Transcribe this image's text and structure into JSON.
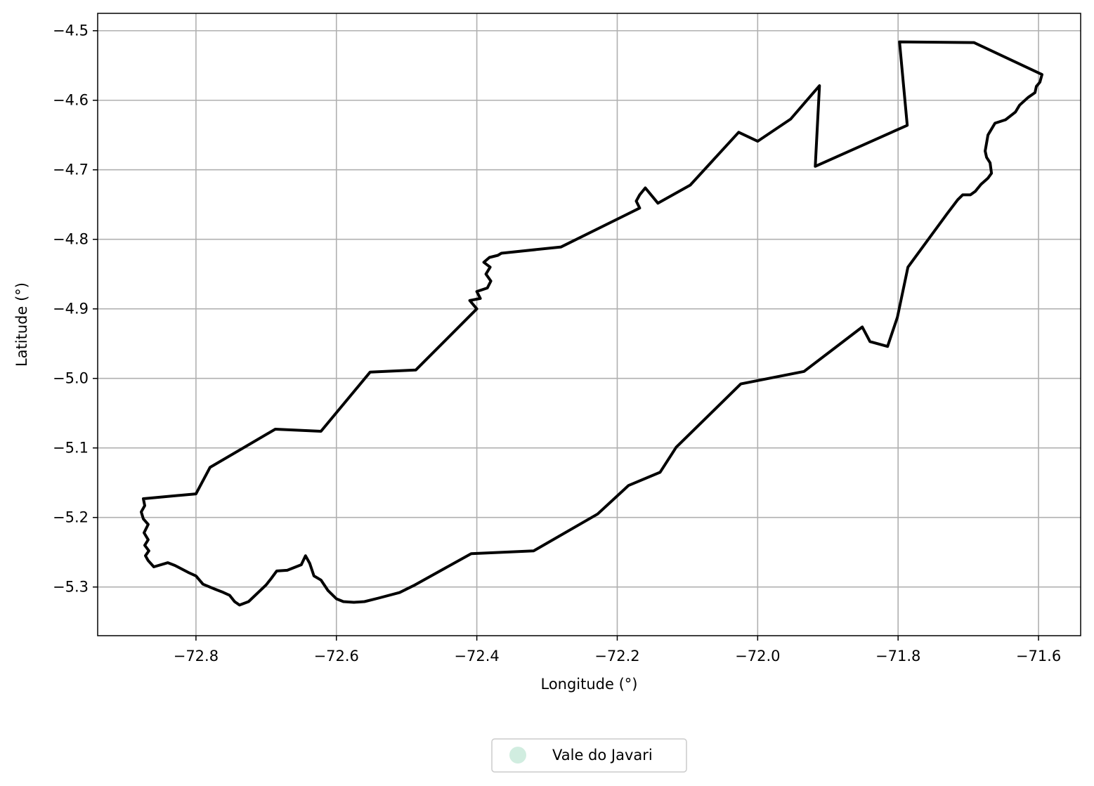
{
  "chart_data": {
    "type": "map",
    "xlabel": "Longitude (°)",
    "ylabel": "Latitude (°)",
    "xlim": [
      -72.94,
      -71.54
    ],
    "ylim": [
      -5.37,
      -4.475
    ],
    "xticks": [
      -72.8,
      -72.6,
      -72.4,
      -72.2,
      -72.0,
      -71.8,
      -71.6
    ],
    "xtick_labels": [
      "−72.8",
      "−72.6",
      "−72.4",
      "−72.2",
      "−72.0",
      "−71.8",
      "−71.6"
    ],
    "yticks": [
      -4.5,
      -4.6,
      -4.7,
      -4.8,
      -4.9,
      -5.0,
      -5.1,
      -5.2,
      -5.3
    ],
    "ytick_labels": [
      "−4.5",
      "−4.6",
      "−4.7",
      "−4.8",
      "−4.9",
      "−5.0",
      "−5.1",
      "−5.2",
      "−5.3"
    ],
    "grid": true,
    "legend": {
      "placement": "bottom-center",
      "entries": [
        {
          "label": "Vale do Javari",
          "color": "#d1ede0"
        }
      ]
    },
    "boundary_color": "#000000",
    "series": [
      {
        "name": "Vale do Javari",
        "boundary": [
          [
            -72.875,
            -5.173
          ],
          [
            -72.8,
            -5.166
          ],
          [
            -72.78,
            -5.128
          ],
          [
            -72.687,
            -5.073
          ],
          [
            -72.622,
            -5.076
          ],
          [
            -72.552,
            -4.991
          ],
          [
            -72.487,
            -4.988
          ],
          [
            -72.4,
            -4.9
          ],
          [
            -72.41,
            -4.888
          ],
          [
            -72.395,
            -4.885
          ],
          [
            -72.4,
            -4.875
          ],
          [
            -72.385,
            -4.87
          ],
          [
            -72.38,
            -4.86
          ],
          [
            -72.387,
            -4.85
          ],
          [
            -72.381,
            -4.84
          ],
          [
            -72.39,
            -4.833
          ],
          [
            -72.382,
            -4.826
          ],
          [
            -72.37,
            -4.823
          ],
          [
            -72.365,
            -4.82
          ],
          [
            -72.28,
            -4.811
          ],
          [
            -72.168,
            -4.755
          ],
          [
            -72.173,
            -4.745
          ],
          [
            -72.168,
            -4.736
          ],
          [
            -72.16,
            -4.726
          ],
          [
            -72.142,
            -4.748
          ],
          [
            -72.096,
            -4.722
          ],
          [
            -72.027,
            -4.646
          ],
          [
            -72.0,
            -4.659
          ],
          [
            -71.953,
            -4.627
          ],
          [
            -71.912,
            -4.579
          ],
          [
            -71.918,
            -4.695
          ],
          [
            -71.787,
            -4.636
          ],
          [
            -71.798,
            -4.516
          ],
          [
            -71.692,
            -4.517
          ],
          [
            -71.595,
            -4.563
          ],
          [
            -71.598,
            -4.574
          ],
          [
            -71.603,
            -4.58
          ],
          [
            -71.605,
            -4.589
          ],
          [
            -71.615,
            -4.596
          ],
          [
            -71.627,
            -4.607
          ],
          [
            -71.633,
            -4.617
          ],
          [
            -71.647,
            -4.628
          ],
          [
            -71.662,
            -4.633
          ],
          [
            -71.672,
            -4.65
          ],
          [
            -71.676,
            -4.673
          ],
          [
            -71.674,
            -4.682
          ],
          [
            -71.669,
            -4.69
          ],
          [
            -71.667,
            -4.705
          ],
          [
            -71.672,
            -4.712
          ],
          [
            -71.682,
            -4.721
          ],
          [
            -71.69,
            -4.731
          ],
          [
            -71.697,
            -4.736
          ],
          [
            -71.708,
            -4.736
          ],
          [
            -71.715,
            -4.743
          ],
          [
            -71.73,
            -4.763
          ],
          [
            -71.786,
            -4.84
          ],
          [
            -71.801,
            -4.912
          ],
          [
            -71.815,
            -4.954
          ],
          [
            -71.84,
            -4.947
          ],
          [
            -71.851,
            -4.926
          ],
          [
            -71.899,
            -4.963
          ],
          [
            -71.934,
            -4.99
          ],
          [
            -72.024,
            -5.008
          ],
          [
            -72.116,
            -5.099
          ],
          [
            -72.139,
            -5.135
          ],
          [
            -72.184,
            -5.154
          ],
          [
            -72.228,
            -5.195
          ],
          [
            -72.319,
            -5.248
          ],
          [
            -72.408,
            -5.252
          ],
          [
            -72.49,
            -5.298
          ],
          [
            -72.51,
            -5.308
          ],
          [
            -72.54,
            -5.316
          ],
          [
            -72.56,
            -5.321
          ],
          [
            -72.575,
            -5.322
          ],
          [
            -72.59,
            -5.321
          ],
          [
            -72.6,
            -5.317
          ],
          [
            -72.612,
            -5.305
          ],
          [
            -72.622,
            -5.29
          ],
          [
            -72.632,
            -5.284
          ],
          [
            -72.638,
            -5.266
          ],
          [
            -72.644,
            -5.255
          ],
          [
            -72.65,
            -5.268
          ],
          [
            -72.67,
            -5.276
          ],
          [
            -72.685,
            -5.277
          ],
          [
            -72.693,
            -5.288
          ],
          [
            -72.7,
            -5.297
          ],
          [
            -72.725,
            -5.321
          ],
          [
            -72.738,
            -5.326
          ],
          [
            -72.745,
            -5.321
          ],
          [
            -72.752,
            -5.312
          ],
          [
            -72.763,
            -5.307
          ],
          [
            -72.773,
            -5.303
          ],
          [
            -72.79,
            -5.296
          ],
          [
            -72.8,
            -5.284
          ],
          [
            -72.811,
            -5.279
          ],
          [
            -72.83,
            -5.269
          ],
          [
            -72.84,
            -5.265
          ],
          [
            -72.86,
            -5.271
          ],
          [
            -72.868,
            -5.262
          ],
          [
            -72.872,
            -5.255
          ],
          [
            -72.867,
            -5.248
          ],
          [
            -72.873,
            -5.24
          ],
          [
            -72.868,
            -5.232
          ],
          [
            -72.874,
            -5.222
          ],
          [
            -72.868,
            -5.21
          ],
          [
            -72.875,
            -5.202
          ],
          [
            -72.878,
            -5.192
          ],
          [
            -72.873,
            -5.183
          ],
          [
            -72.875,
            -5.173
          ]
        ]
      }
    ]
  }
}
